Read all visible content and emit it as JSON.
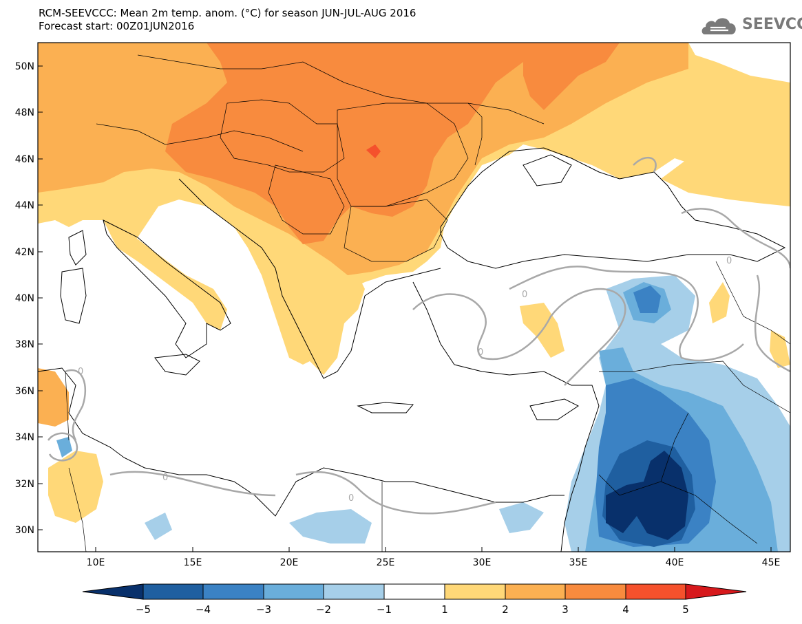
{
  "header": {
    "title_line1": "RCM-SEEVCCC: Mean 2m temp. anom. (°C) for season JUN-JUL-AUG 2016",
    "title_line2": "Forecast start: 00Z01JUN2016"
  },
  "logo": {
    "text": "SEEVCCC",
    "icon": "cloud-icon"
  },
  "map": {
    "lon_range": [
      7,
      46
    ],
    "lat_range": [
      29,
      51
    ],
    "lat_ticks": [
      "50N",
      "48N",
      "46N",
      "44N",
      "42N",
      "40N",
      "38N",
      "36N",
      "34N",
      "32N",
      "30N"
    ],
    "lon_ticks": [
      "10E",
      "15E",
      "20E",
      "25E",
      "30E",
      "35E",
      "40E",
      "45E"
    ],
    "contour_label": "0"
  },
  "colorbar": {
    "labels": [
      "−5",
      "−4",
      "−3",
      "−2",
      "−1",
      "1",
      "2",
      "3",
      "4",
      "5"
    ],
    "colors": {
      "lt_-5": "#08306b",
      "-5_-4": "#1f5fa0",
      "-4_-3": "#3b82c4",
      "-3_-2": "#6aaedb",
      "-2_-1": "#a6cfe9",
      "-1_1": "#ffffff",
      "1_2": "#ffd878",
      "2_3": "#fbb052",
      "3_4": "#f88b3e",
      "4_5": "#f5512c",
      "gt_5": "#d7191c"
    }
  }
}
